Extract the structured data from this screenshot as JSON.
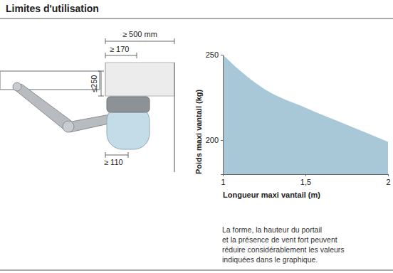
{
  "header": {
    "title": "Limites d'utilisation"
  },
  "diagram": {
    "dimensions": [
      "≥ 500 mm",
      "≥ 170",
      "≤250",
      "≥ 110"
    ]
  },
  "chart_data": {
    "type": "area",
    "x": [
      1,
      1.1,
      1.25,
      1.5,
      1.75,
      2
    ],
    "values": [
      250,
      241,
      230,
      219,
      209,
      199
    ],
    "color": "#a9c8d7",
    "xlabel": "Longueur maxi vantail (m)",
    "ylabel": "Poids maxi vantail (kg)",
    "xlim": [
      1,
      2
    ],
    "ylim": [
      180,
      250
    ],
    "xticks": [
      1,
      {
        "value": 1.5,
        "label": "1,5"
      },
      2
    ],
    "yticks": [
      200,
      250
    ],
    "annotations": [
      "La forme, la hauteur du portail",
      "et la présence de vent fort peuvent",
      "réduire considérablement les valeurs",
      "indiquées dans le graphique."
    ]
  }
}
